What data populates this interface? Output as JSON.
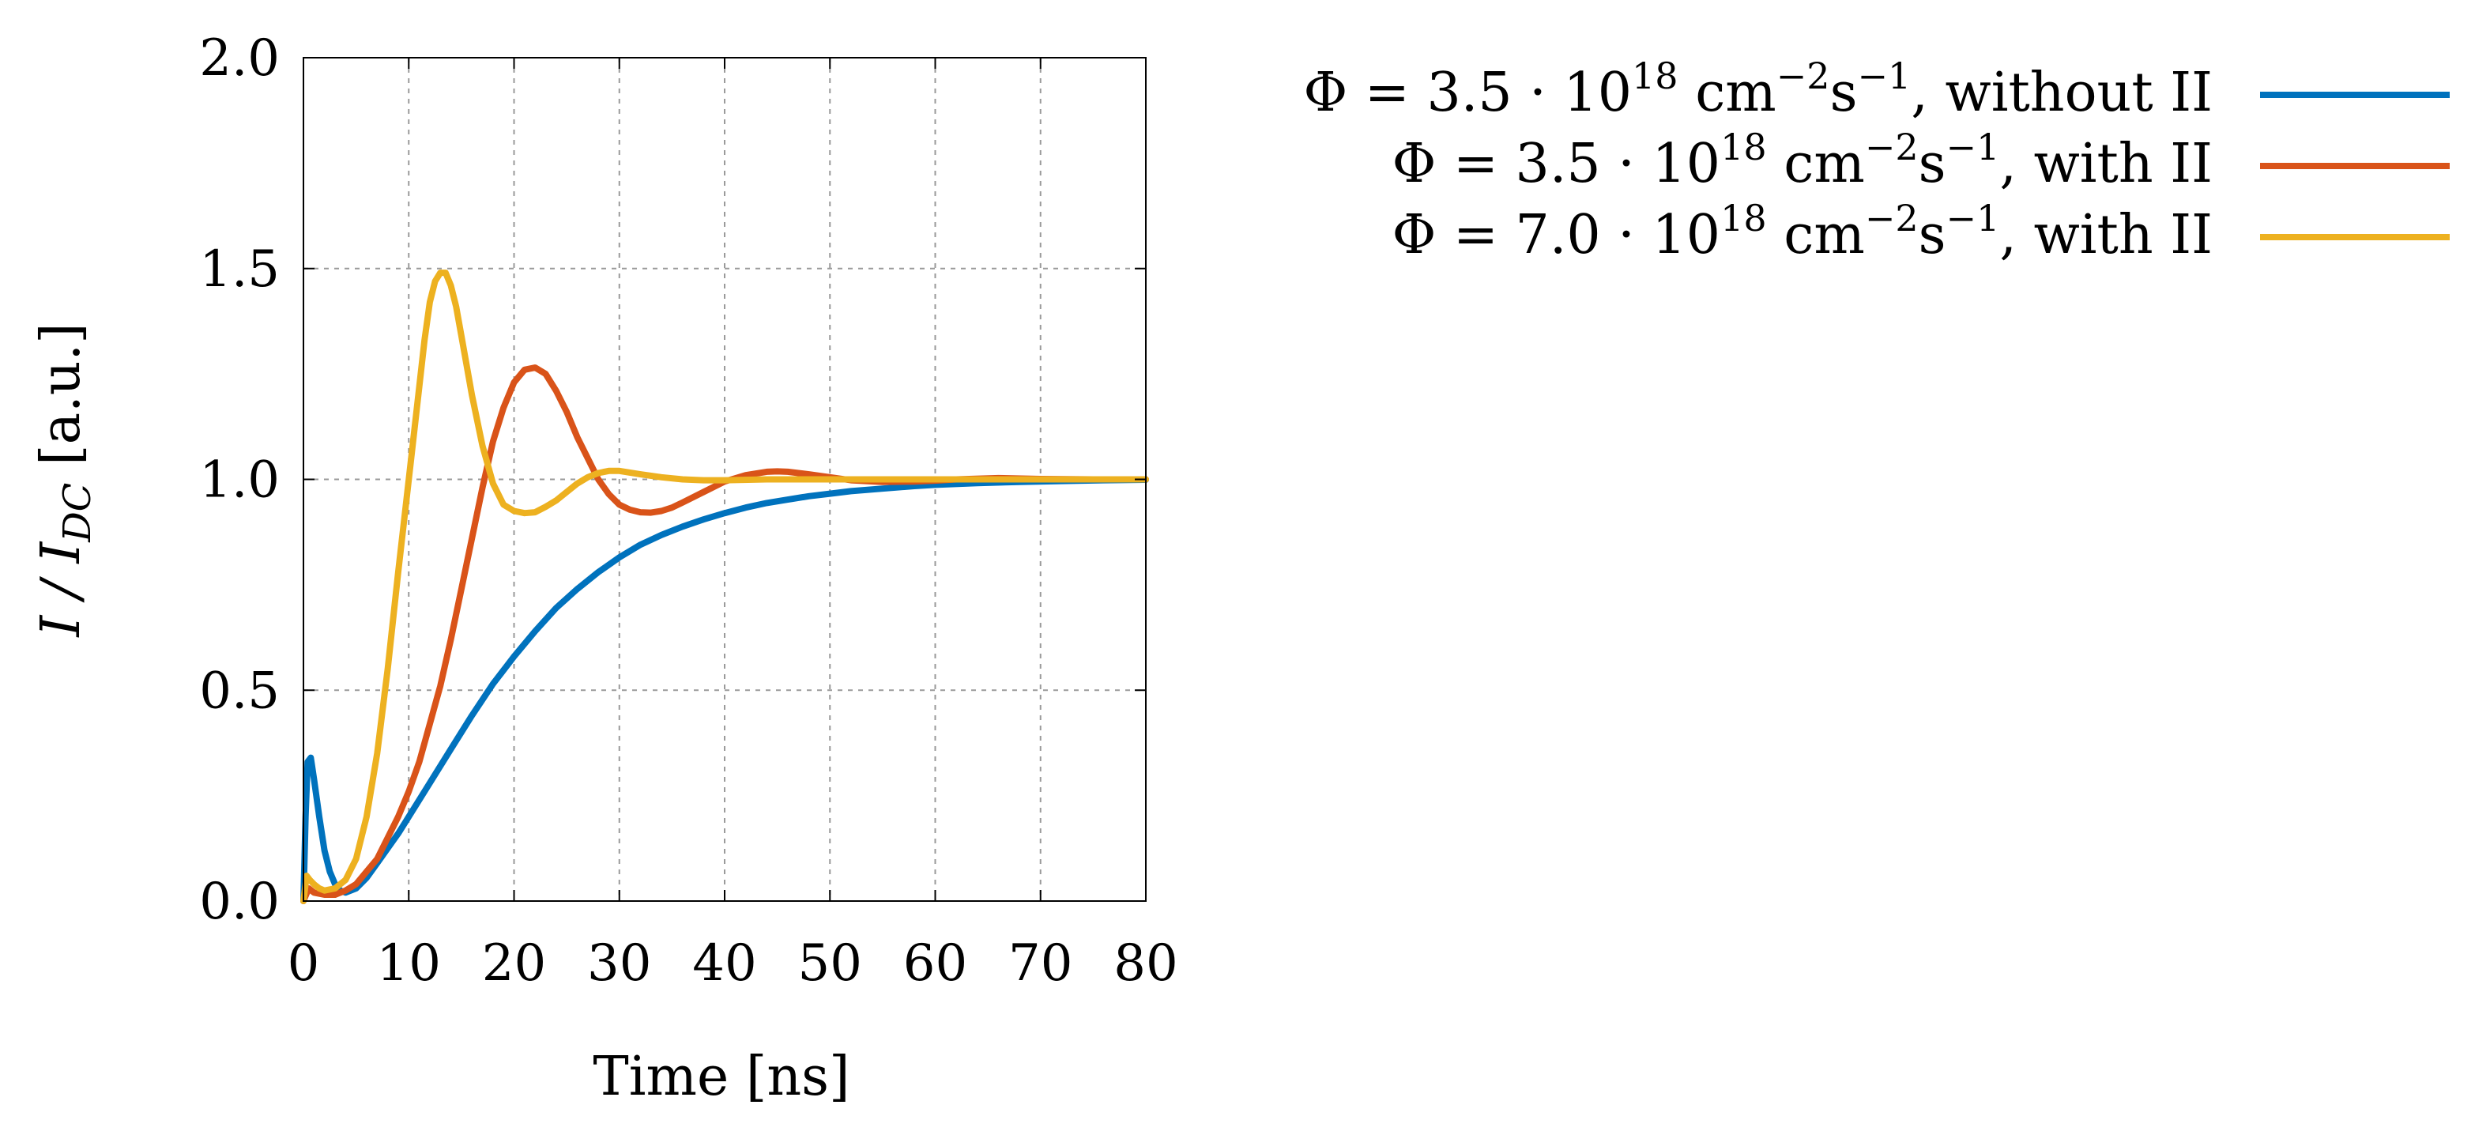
{
  "chart_data": {
    "type": "line",
    "xlabel": "Time [ns]",
    "ylabel_parts": {
      "base": "I / I",
      "subscript": "DC",
      "unit": " [a.u.]"
    },
    "xlim": [
      0,
      80
    ],
    "ylim": [
      0,
      2
    ],
    "xticks": [
      "0",
      "10",
      "20",
      "30",
      "40",
      "50",
      "60",
      "70",
      "80"
    ],
    "yticks": [
      "0.0",
      "0.5",
      "1.0",
      "1.5",
      "2.0"
    ],
    "grid": true,
    "legend_position": "right",
    "series": [
      {
        "name": "Φ = 3.5 · 10^18 cm^−2 s^−1, without II",
        "label_parts": {
          "prefix": "Φ = 3.5 · 10",
          "exp": "18",
          "unit1": " cm",
          "unit1_exp": "−2",
          "unit2": "s",
          "unit2_exp": "−1",
          "suffix": ", without II"
        },
        "color": "#0072BD",
        "x": [
          0,
          0.2,
          0.4,
          0.7,
          1,
          1.5,
          2,
          2.5,
          3,
          3.5,
          4,
          5,
          6,
          7,
          8,
          9,
          10,
          12,
          14,
          16,
          18,
          20,
          22,
          24,
          26,
          28,
          30,
          32,
          34,
          36,
          38,
          40,
          42,
          44,
          46,
          48,
          50,
          52,
          55,
          58,
          60,
          64,
          68,
          72,
          76,
          80
        ],
        "y": [
          0,
          0.2,
          0.33,
          0.34,
          0.29,
          0.2,
          0.12,
          0.07,
          0.04,
          0.025,
          0.02,
          0.03,
          0.055,
          0.09,
          0.125,
          0.16,
          0.2,
          0.28,
          0.36,
          0.44,
          0.515,
          0.58,
          0.64,
          0.695,
          0.74,
          0.78,
          0.815,
          0.845,
          0.868,
          0.888,
          0.905,
          0.92,
          0.933,
          0.944,
          0.952,
          0.96,
          0.966,
          0.972,
          0.978,
          0.984,
          0.987,
          0.991,
          0.994,
          0.996,
          0.998,
          0.999
        ]
      },
      {
        "name": "Φ = 3.5 · 10^18 cm^−2 s^−1, with II",
        "label_parts": {
          "prefix": "Φ = 3.5 · 10",
          "exp": "18",
          "unit1": " cm",
          "unit1_exp": "−2",
          "unit2": "s",
          "unit2_exp": "−1",
          "suffix": ", with II"
        },
        "color": "#D95319",
        "x": [
          0,
          0.5,
          1,
          2,
          3,
          4,
          5,
          6,
          7,
          8,
          9,
          10,
          11,
          12,
          13,
          14,
          15,
          16,
          17,
          18,
          19,
          20,
          21,
          22,
          23,
          24,
          25,
          26,
          27,
          28,
          29,
          30,
          31,
          32,
          33,
          34,
          35,
          36,
          38,
          40,
          42,
          44,
          45,
          46,
          48,
          50,
          52,
          55,
          58,
          60,
          62,
          66,
          70,
          75,
          80
        ],
        "y": [
          0,
          0.03,
          0.02,
          0.015,
          0.015,
          0.025,
          0.04,
          0.07,
          0.1,
          0.15,
          0.2,
          0.26,
          0.33,
          0.42,
          0.51,
          0.62,
          0.74,
          0.86,
          0.98,
          1.09,
          1.17,
          1.23,
          1.26,
          1.265,
          1.25,
          1.21,
          1.16,
          1.1,
          1.05,
          1.0,
          0.965,
          0.94,
          0.928,
          0.922,
          0.921,
          0.925,
          0.933,
          0.945,
          0.97,
          0.995,
          1.01,
          1.018,
          1.019,
          1.018,
          1.012,
          1.005,
          0.998,
          0.994,
          0.995,
          0.997,
          1.0,
          1.003,
          1.001,
          1.0,
          1.0
        ]
      },
      {
        "name": "Φ = 7.0 · 10^18 cm^−2 s^−1, with II",
        "label_parts": {
          "prefix": "Φ = 7.0 · 10",
          "exp": "18",
          "unit1": " cm",
          "unit1_exp": "−2",
          "unit2": "s",
          "unit2_exp": "−1",
          "suffix": ", with II"
        },
        "color": "#EDB120",
        "x": [
          0,
          0.3,
          0.6,
          1,
          1.5,
          2,
          3,
          4,
          5,
          6,
          7,
          8,
          9,
          10,
          11,
          11.5,
          12,
          12.5,
          13,
          13.5,
          14,
          14.5,
          15,
          16,
          17,
          18,
          19,
          20,
          21,
          22,
          23,
          24,
          25,
          26,
          27,
          28,
          29,
          30,
          32,
          34,
          36,
          38,
          40,
          44,
          50,
          60,
          70,
          80
        ],
        "y": [
          0,
          0.06,
          0.05,
          0.04,
          0.03,
          0.025,
          0.03,
          0.05,
          0.1,
          0.2,
          0.35,
          0.55,
          0.78,
          1.0,
          1.22,
          1.33,
          1.42,
          1.47,
          1.49,
          1.49,
          1.46,
          1.41,
          1.34,
          1.2,
          1.08,
          0.99,
          0.94,
          0.925,
          0.92,
          0.922,
          0.935,
          0.95,
          0.97,
          0.99,
          1.005,
          1.015,
          1.02,
          1.02,
          1.012,
          1.005,
          1.0,
          0.998,
          0.998,
          1.0,
          1.0,
          1.0,
          1.0,
          1.0
        ]
      }
    ]
  }
}
